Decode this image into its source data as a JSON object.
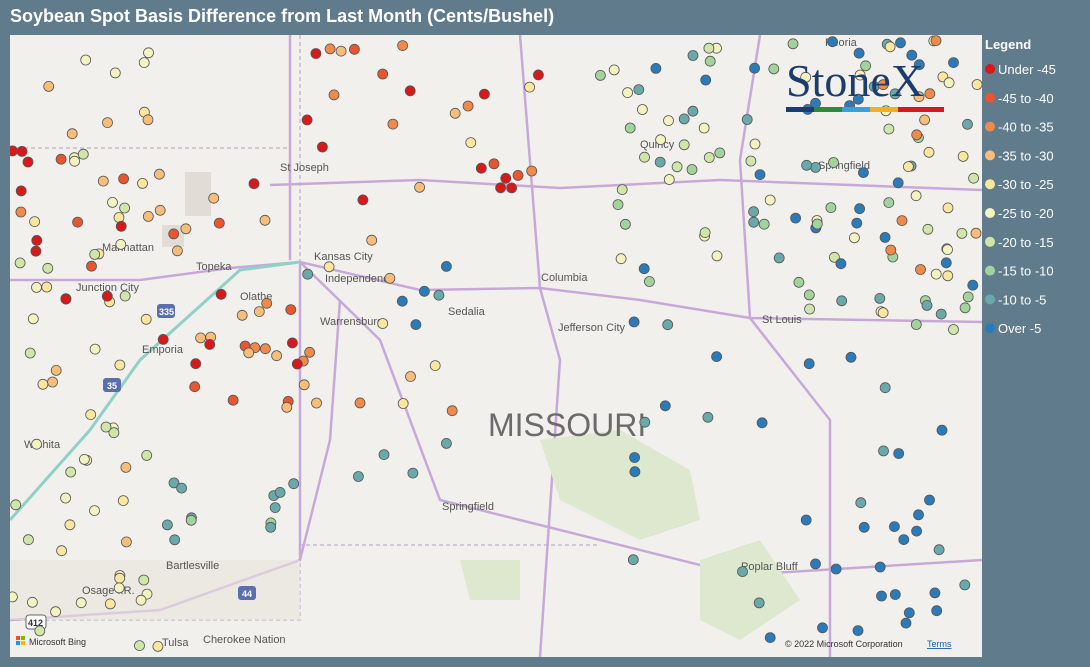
{
  "title": "Soybean Spot Basis Difference from Last Month (Cents/Bushel)",
  "legend": {
    "title": "Legend",
    "items": [
      {
        "label": "Under -45",
        "color": "#d7191c"
      },
      {
        "label": "-45 to -40",
        "color": "#e8552f"
      },
      {
        "label": "-40 to -35",
        "color": "#f08a4b"
      },
      {
        "label": "-35 to -30",
        "color": "#f6be7a"
      },
      {
        "label": "-30 to -25",
        "color": "#fbe6a0"
      },
      {
        "label": "-25 to -20",
        "color": "#f3f2c0"
      },
      {
        "label": "-20 to -15",
        "color": "#cfe6a8"
      },
      {
        "label": "-15 to -10",
        "color": "#a3d39c"
      },
      {
        "label": "-10 to -5",
        "color": "#6aa9a9"
      },
      {
        "label": "Over -5",
        "color": "#2b7bba"
      }
    ]
  },
  "logo": "StoneX",
  "map_labels": [
    "St Joseph",
    "Kansas City",
    "Independence",
    "Manhattan",
    "Topeka",
    "Junction City",
    "Olathe",
    "Emporia",
    "Warrensburg",
    "Sedalia",
    "Columbia",
    "Jefferson City",
    "St Louis",
    "Quincy",
    "Peoria",
    "Springfield",
    "Springfield",
    "Wichita",
    "Bartlesville",
    "Osage I.R.",
    "Tulsa",
    "Cherokee Nation",
    "Poplar Bluff",
    "MISSOURI"
  ],
  "highway_shields": [
    "335",
    "35",
    "44",
    "412"
  ],
  "attribution": {
    "bing": "Microsoft Bing",
    "copyright": "© 2022 Microsoft Corporation",
    "terms": "Terms"
  }
}
